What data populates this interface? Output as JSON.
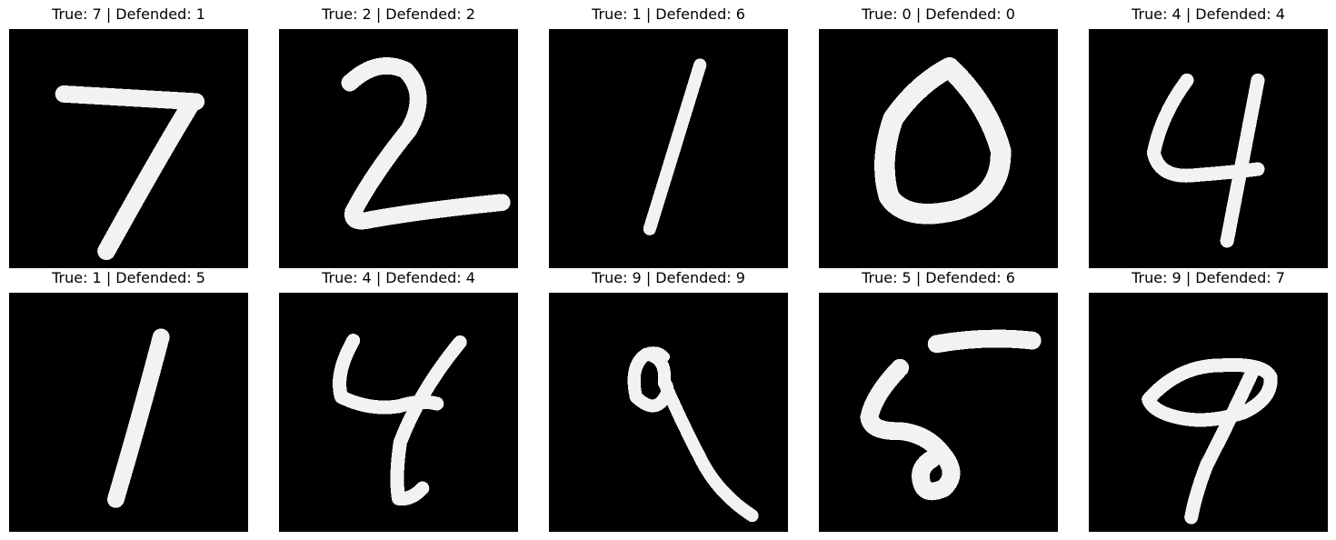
{
  "panels": [
    {
      "title": "True: 7 | Defended: 1",
      "digit": "7",
      "true_label": 7,
      "defended_label": 1
    },
    {
      "title": "True: 2 | Defended: 2",
      "digit": "2",
      "true_label": 2,
      "defended_label": 2
    },
    {
      "title": "True: 1 | Defended: 6",
      "digit": "1",
      "true_label": 1,
      "defended_label": 6
    },
    {
      "title": "True: 0 | Defended: 0",
      "digit": "0",
      "true_label": 0,
      "defended_label": 0
    },
    {
      "title": "True: 4 | Defended: 4",
      "digit": "4",
      "true_label": 4,
      "defended_label": 4
    },
    {
      "title": "True: 1 | Defended: 5",
      "digit": "1",
      "true_label": 1,
      "defended_label": 5
    },
    {
      "title": "True: 4 | Defended: 4",
      "digit": "4",
      "true_label": 4,
      "defended_label": 4
    },
    {
      "title": "True: 9 | Defended: 9",
      "digit": "9",
      "true_label": 9,
      "defended_label": 9
    },
    {
      "title": "True: 5 | Defended: 6",
      "digit": "5",
      "true_label": 5,
      "defended_label": 6
    },
    {
      "title": "True: 9 | Defended: 7",
      "digit": "9",
      "true_label": 9,
      "defended_label": 7
    }
  ],
  "colors": {
    "image_background": "#000000",
    "digit_stroke": "#f2f2f2",
    "page_background": "#ffffff"
  }
}
